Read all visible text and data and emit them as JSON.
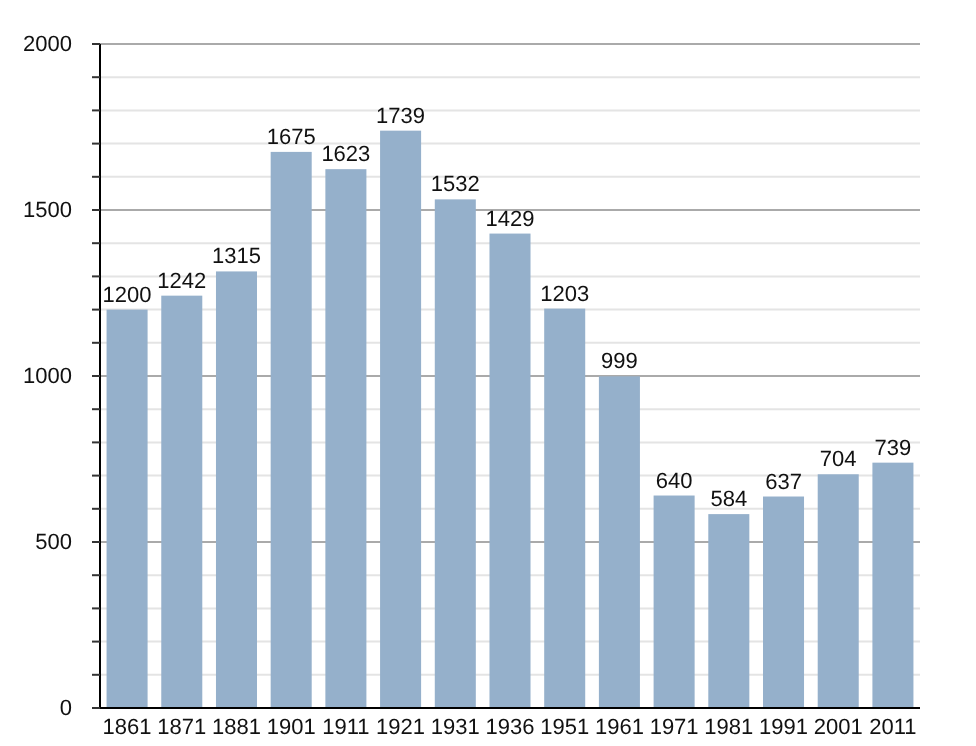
{
  "chart_data": {
    "type": "bar",
    "categories": [
      "1861",
      "1871",
      "1881",
      "1901",
      "1911",
      "1921",
      "1931",
      "1936",
      "1951",
      "1961",
      "1971",
      "1981",
      "1991",
      "2001",
      "2011"
    ],
    "values": [
      1200,
      1242,
      1315,
      1675,
      1623,
      1739,
      1532,
      1429,
      1203,
      999,
      640,
      584,
      637,
      704,
      739
    ],
    "color": "#95b0cb",
    "data_labels": true,
    "ylim": [
      0,
      2000
    ],
    "yticks": [
      0,
      {
        "value": 100,
        "label": null
      },
      {
        "value": 200,
        "label": null
      },
      {
        "value": 300,
        "label": null
      },
      {
        "value": 400,
        "label": null
      },
      500,
      {
        "value": 600,
        "label": null
      },
      {
        "value": 700,
        "label": null
      },
      {
        "value": 800,
        "label": null
      },
      {
        "value": 900,
        "label": null
      },
      1000,
      {
        "value": 1100,
        "label": null
      },
      {
        "value": 1200,
        "label": null
      },
      {
        "value": 1300,
        "label": null
      },
      {
        "value": 1400,
        "label": null
      },
      1500,
      {
        "value": 1600,
        "label": null
      },
      {
        "value": 1700,
        "label": null
      },
      {
        "value": 1800,
        "label": null
      },
      {
        "value": 1900,
        "label": null
      },
      2000
    ],
    "grid": true
  }
}
